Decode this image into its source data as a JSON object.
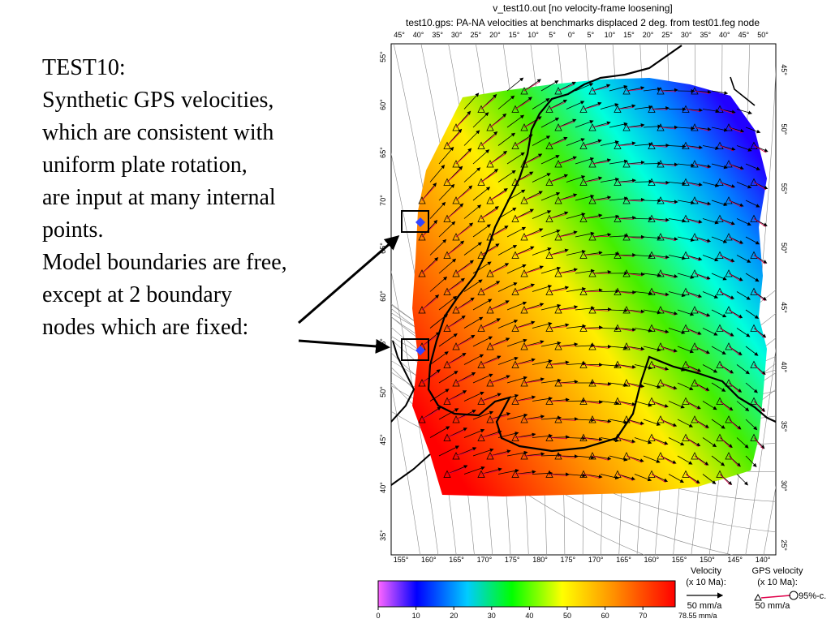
{
  "slide": {
    "lines": [
      "TEST10:",
      "Synthetic GPS velocities,",
      "which are consistent with",
      "uniform plate rotation,",
      "are input at many internal",
      "points.",
      "Model boundaries are free,",
      "except at 2 boundary",
      "nodes which are fixed:"
    ]
  },
  "map": {
    "title": "v_test10.out [no velocity-frame loosening]",
    "subtitle": "test10.gps: PA-NA velocities at benchmarks displaced 2 deg. from test01.feg node",
    "top_lon_labels": [
      "45°",
      "40°",
      "35°",
      "30°",
      "25°",
      "20°",
      "15°",
      "10°",
      "5°",
      "0°",
      "5°",
      "10°",
      "15°",
      "20°",
      "25°",
      "30°",
      "35°",
      "40°",
      "45°",
      "50°"
    ],
    "bottom_lon_labels": [
      "155°",
      "160°",
      "165°",
      "170°",
      "175°",
      "180°",
      "175°",
      "170°",
      "165°",
      "160°",
      "155°",
      "150°",
      "145°",
      "140°"
    ],
    "left_lat_labels": [
      "55°",
      "60°",
      "65°",
      "70°",
      "65°",
      "60°",
      "55°",
      "50°",
      "45°",
      "40°",
      "35°"
    ],
    "right_lat_labels": [
      "45°",
      "50°",
      "55°",
      "50°",
      "45°",
      "40°",
      "35°",
      "30°",
      "25°"
    ],
    "colors": {
      "fill_low": "#ff0000",
      "fill_high": "#0000ff",
      "arrow_model": "#000000",
      "arrow_gps": "#e0004a"
    }
  },
  "legend": {
    "colorbar_ticks": [
      "0",
      "10",
      "20",
      "30",
      "40",
      "50",
      "60",
      "70"
    ],
    "colorbar_max": "78.55 mm/a",
    "velocity_title": "Velocity",
    "velocity_scale_note": "(x 10 Ma):",
    "velocity_ref": "50 mm/a",
    "gps_title": "GPS velocity",
    "gps_scale_note": "(x 10 Ma):",
    "gps_ref": "50 mm/a",
    "gps_confidence": "95%-c."
  }
}
